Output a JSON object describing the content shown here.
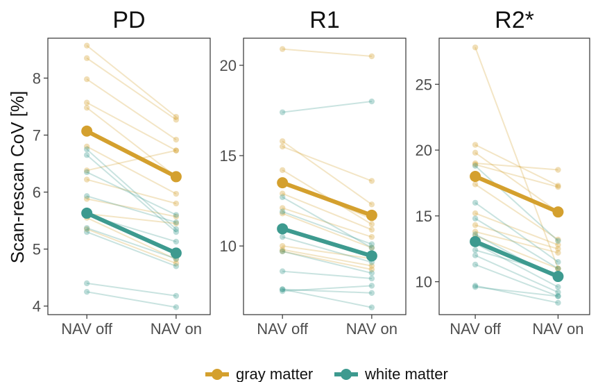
{
  "chart_data": {
    "type": "line",
    "y_axis_title": "Scan-rescan CoV [%]",
    "categories": [
      "NAV off",
      "NAV on"
    ],
    "legend": {
      "position": "bottom",
      "items": [
        {
          "label": "gray matter",
          "color": "#D4A02E"
        },
        {
          "label": "white matter",
          "color": "#3D9A8F"
        }
      ]
    },
    "panels": [
      {
        "title": "PD",
        "ylim": [
          3.85,
          8.7
        ],
        "yticks": [
          4,
          5,
          6,
          7,
          8
        ],
        "series": [
          {
            "name": "gray matter",
            "color": "#D4A02E",
            "mean": [
              7.07,
              6.27
            ],
            "subjects": [
              [
                8.57,
                7.32
              ],
              [
                8.35,
                7.27
              ],
              [
                7.98,
                6.92
              ],
              [
                7.57,
                6.73
              ],
              [
                7.48,
                6.27
              ],
              [
                6.8,
                5.97
              ],
              [
                6.38,
                6.73
              ],
              [
                6.22,
                5.8
              ],
              [
                5.88,
                5.57
              ],
              [
                5.62,
                5.45
              ],
              [
                5.55,
                4.82
              ],
              [
                5.35,
                4.75
              ]
            ]
          },
          {
            "name": "white matter",
            "color": "#3D9A8F",
            "mean": [
              5.63,
              4.93
            ],
            "subjects": [
              [
                6.75,
                5.35
              ],
              [
                6.65,
                5.3
              ],
              [
                6.35,
                5.6
              ],
              [
                5.93,
                5.47
              ],
              [
                5.6,
                5.13
              ],
              [
                5.37,
                4.83
              ],
              [
                5.3,
                4.7
              ],
              [
                4.4,
                4.18
              ],
              [
                4.25,
                3.98
              ]
            ]
          }
        ]
      },
      {
        "title": "R1",
        "ylim": [
          6.2,
          21.5
        ],
        "yticks": [
          10,
          15,
          20
        ],
        "series": [
          {
            "name": "gray matter",
            "color": "#D4A02E",
            "mean": [
              13.5,
              11.7
            ],
            "subjects": [
              [
                20.9,
                20.5
              ],
              [
                15.8,
                12.3
              ],
              [
                15.5,
                13.6
              ],
              [
                14.2,
                11.2
              ],
              [
                13.6,
                11.5
              ],
              [
                12.9,
                10.9
              ],
              [
                12.1,
                10.5
              ],
              [
                11.8,
                9.9
              ],
              [
                10.0,
                9.3
              ],
              [
                9.8,
                8.9
              ],
              [
                9.7,
                8.7
              ]
            ]
          },
          {
            "name": "white matter",
            "color": "#3D9A8F",
            "mean": [
              10.95,
              9.45
            ],
            "subjects": [
              [
                17.4,
                18.0
              ],
              [
                12.7,
                9.9
              ],
              [
                11.9,
                10.1
              ],
              [
                10.5,
                9.1
              ],
              [
                9.7,
                8.5
              ],
              [
                8.6,
                8.2
              ],
              [
                7.6,
                7.4
              ],
              [
                7.5,
                7.8
              ],
              [
                7.6,
                6.6
              ]
            ]
          }
        ]
      },
      {
        "title": "R2*",
        "ylim": [
          7.5,
          28.5
        ],
        "yticks": [
          10,
          15,
          20,
          25
        ],
        "series": [
          {
            "name": "gray matter",
            "color": "#D4A02E",
            "mean": [
              18.0,
              15.3
            ],
            "subjects": [
              [
                27.8,
                11.0
              ],
              [
                20.4,
                17.3
              ],
              [
                19.8,
                15.3
              ],
              [
                19.0,
                18.5
              ],
              [
                18.9,
                17.2
              ],
              [
                17.4,
                13.2
              ],
              [
                15.2,
                12.8
              ],
              [
                14.3,
                12.5
              ],
              [
                13.8,
                12.2
              ],
              [
                13.5,
                11.0
              ]
            ]
          },
          {
            "name": "white matter",
            "color": "#3D9A8F",
            "mean": [
              13.05,
              10.4
            ],
            "subjects": [
              [
                18.8,
                13.1
              ],
              [
                16.0,
                11.5
              ],
              [
                14.8,
                11.0
              ],
              [
                13.6,
                10.2
              ],
              [
                12.9,
                9.6
              ],
              [
                12.4,
                10.6
              ],
              [
                12.0,
                9.2
              ],
              [
                11.3,
                8.9
              ],
              [
                9.7,
                8.4
              ],
              [
                9.6,
                8.9
              ]
            ]
          }
        ]
      }
    ]
  }
}
